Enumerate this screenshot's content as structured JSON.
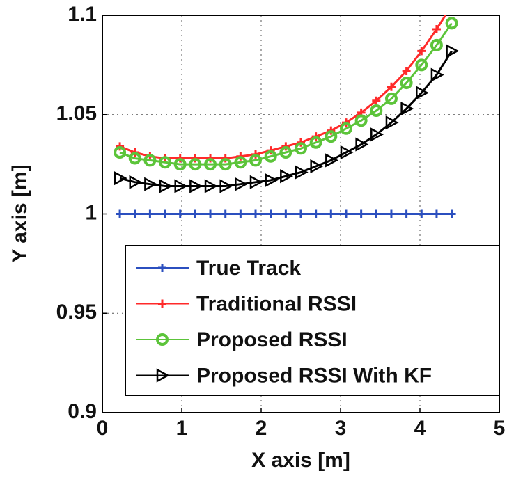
{
  "chart_data": {
    "type": "line",
    "xlabel": "X axis [m]",
    "ylabel": "Y axis [m]",
    "x": [
      0.22,
      0.41,
      0.6,
      0.79,
      0.98,
      1.17,
      1.36,
      1.55,
      1.74,
      1.93,
      2.12,
      2.31,
      2.5,
      2.69,
      2.88,
      3.07,
      3.26,
      3.45,
      3.64,
      3.83,
      4.02,
      4.21,
      4.4
    ],
    "series": [
      {
        "name": "True Track",
        "color": "#2b4fbf",
        "marker": "plus",
        "values": [
          1,
          1,
          1,
          1,
          1,
          1,
          1,
          1,
          1,
          1,
          1,
          1,
          1,
          1,
          1,
          1,
          1,
          1,
          1,
          1,
          1,
          1,
          1
        ]
      },
      {
        "name": "Traditional RSSI",
        "color": "#ff2a2a",
        "marker": "plus",
        "values": [
          1.034,
          1.031,
          1.029,
          1.028,
          1.028,
          1.028,
          1.028,
          1.028,
          1.029,
          1.03,
          1.032,
          1.034,
          1.036,
          1.039,
          1.042,
          1.046,
          1.051,
          1.057,
          1.064,
          1.072,
          1.082,
          1.093,
          1.105
        ]
      },
      {
        "name": "Proposed RSSI",
        "color": "#5cc43a",
        "marker": "circle",
        "values": [
          1.031,
          1.028,
          1.027,
          1.026,
          1.025,
          1.025,
          1.025,
          1.025,
          1.026,
          1.027,
          1.029,
          1.031,
          1.033,
          1.036,
          1.039,
          1.043,
          1.047,
          1.052,
          1.058,
          1.066,
          1.075,
          1.085,
          1.096
        ]
      },
      {
        "name": "Proposed RSSI With KF",
        "color": "#000000",
        "marker": "triangle-right",
        "values": [
          1.018,
          1.016,
          1.015,
          1.014,
          1.014,
          1.014,
          1.014,
          1.014,
          1.015,
          1.016,
          1.017,
          1.019,
          1.021,
          1.024,
          1.027,
          1.031,
          1.035,
          1.04,
          1.046,
          1.053,
          1.061,
          1.07,
          1.082
        ]
      }
    ],
    "xlim": [
      0,
      5
    ],
    "xticks": [
      0,
      1,
      2,
      3,
      4,
      5
    ],
    "ylim": [
      0.9,
      1.1
    ],
    "yticks": [
      0.9,
      0.95,
      1,
      1.05,
      1.1
    ],
    "grid": true,
    "legend": "lower right"
  }
}
